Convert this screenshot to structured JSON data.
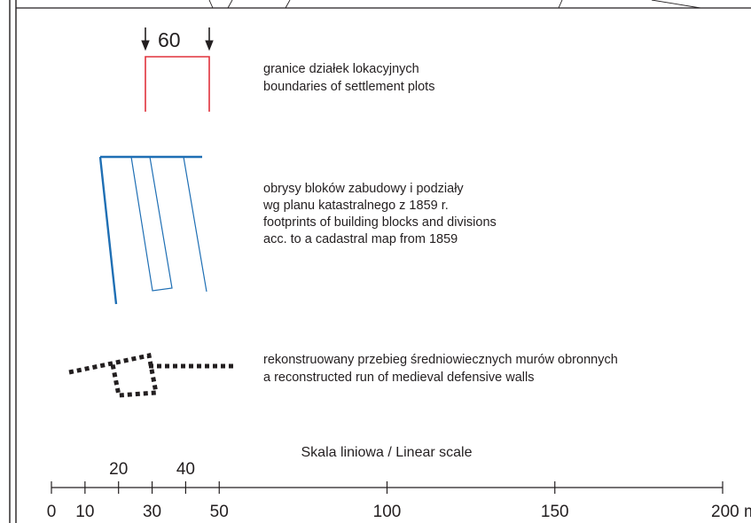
{
  "plot_legend": {
    "dimension_value": "60",
    "line_color": "#e0323c",
    "lines": [
      "granice działek lokacyjnych",
      "boundaries of settlement plots"
    ]
  },
  "block_legend": {
    "line_color": "#1f6fb4",
    "lines": [
      "obrysy bloków zabudowy i podziały",
      "wg planu katastralnego z 1859 r.",
      "footprints of building blocks and divisions",
      "acc. to a cadastral map from 1859"
    ]
  },
  "wall_legend": {
    "line_color": "#231f20",
    "lines": [
      "rekonstruowany przebieg średniowiecznych murów obronnych",
      "a reconstructed run of medieval defensive walls"
    ]
  },
  "scale_bar": {
    "title": "Skala liniowa / Linear scale",
    "unit": "m",
    "major_ticks": [
      0,
      10,
      30,
      50,
      100,
      150,
      200
    ],
    "minor_ticks": [
      20,
      40
    ],
    "max_value": 200
  }
}
